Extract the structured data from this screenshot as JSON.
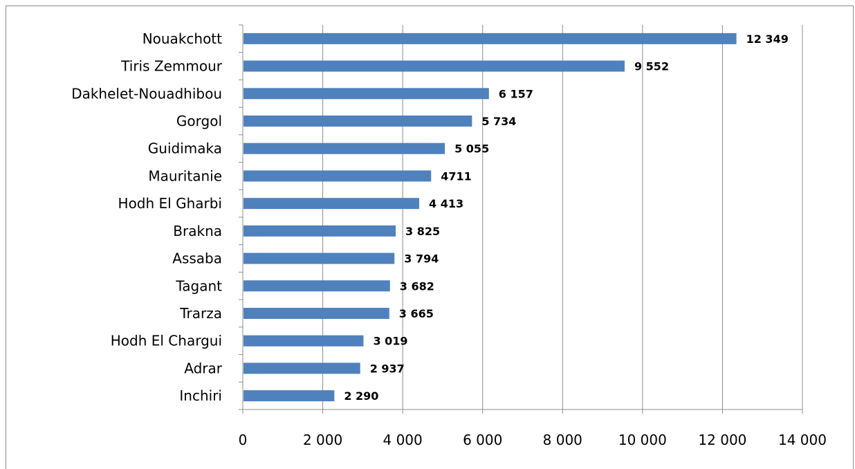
{
  "chart_data": {
    "type": "bar",
    "orientation": "horizontal",
    "categories": [
      "Nouakchott",
      "Tiris Zemmour",
      "Dakhelet-Nouadhibou",
      "Gorgol",
      "Guidimaka",
      "Mauritanie",
      "Hodh El Gharbi",
      "Brakna",
      "Assaba",
      "Tagant",
      "Trarza",
      "Hodh El Chargui",
      "Adrar",
      "Inchiri"
    ],
    "values": [
      12349,
      9552,
      6157,
      5734,
      5055,
      4711,
      4413,
      3825,
      3794,
      3682,
      3665,
      3019,
      2937,
      2290
    ],
    "data_labels": [
      "12 349",
      "9 552",
      "6 157",
      "5 734",
      "5 055",
      "4711",
      "4 413",
      "3 825",
      "3 794",
      "3 682",
      "3 665",
      "3 019",
      "2 937",
      "2 290"
    ],
    "xlim": [
      0,
      14000
    ],
    "x_ticks": [
      0,
      2000,
      4000,
      6000,
      8000,
      10000,
      12000,
      14000
    ],
    "x_tick_labels": [
      "0",
      "2 000",
      "4 000",
      "6 000",
      "8 000",
      "10 000",
      "12 000",
      "14 000"
    ],
    "grid": "vertical",
    "legend": "none",
    "title": "",
    "xlabel": "",
    "ylabel": "",
    "colors": {
      "bar": "#4f81bd",
      "grid": "#8c8c8c",
      "axis": "#8c8c8c"
    }
  }
}
